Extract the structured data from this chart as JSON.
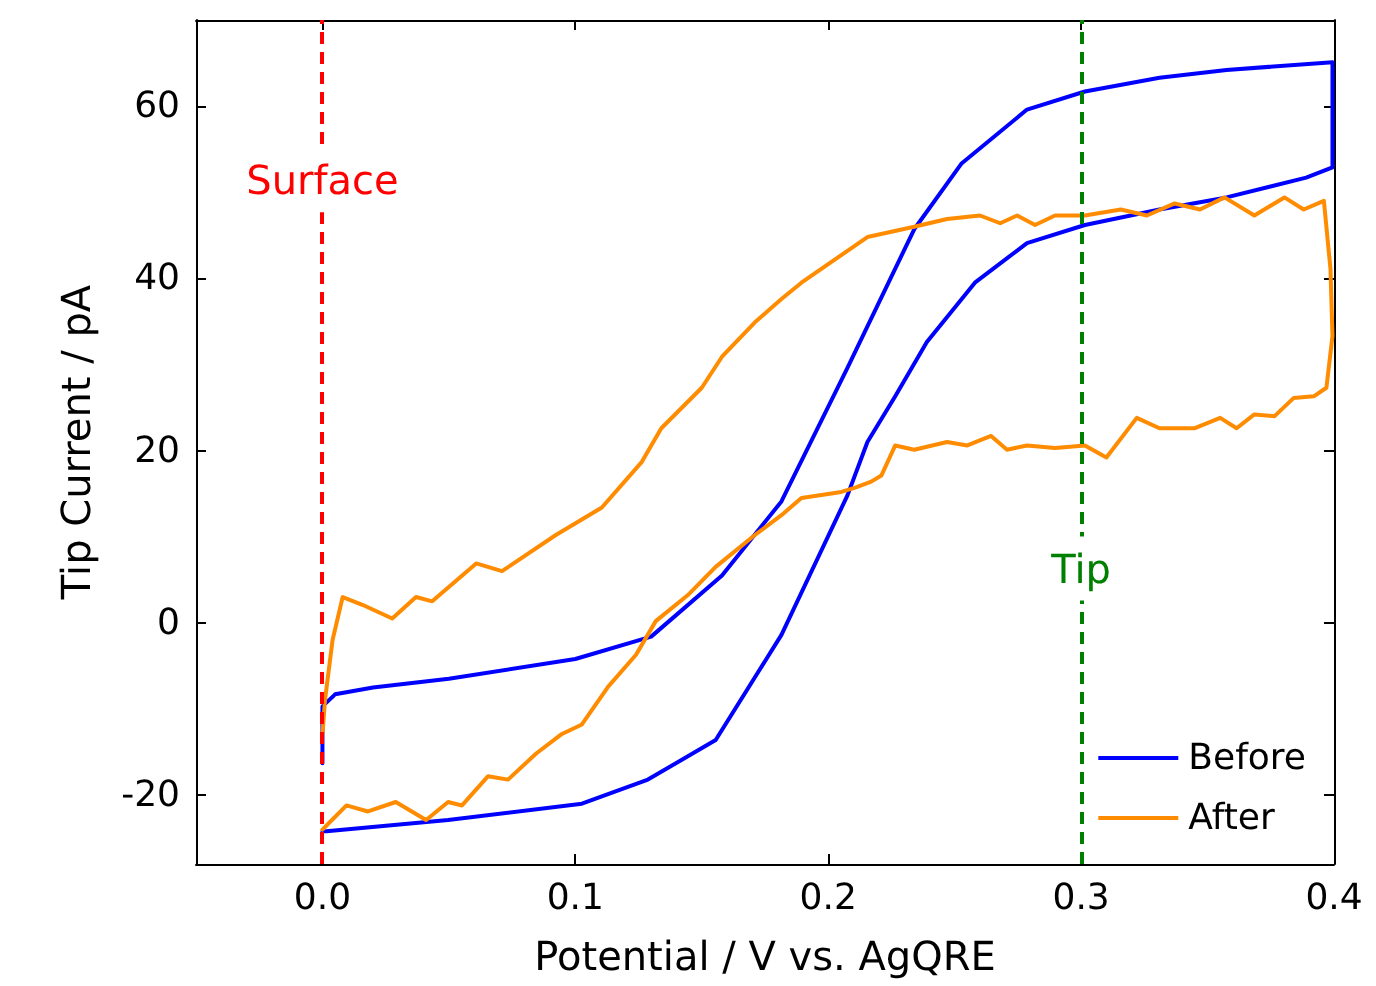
{
  "chart_data": {
    "type": "line",
    "xlabel": "Potential / V vs. AgQRE",
    "ylabel": "Tip Current / pA",
    "xlim": [
      -0.05,
      0.4
    ],
    "ylim": [
      -28,
      70
    ],
    "xticks": [
      {
        "value": 0.0,
        "label": "0.0"
      },
      {
        "value": 0.1,
        "label": "0.1"
      },
      {
        "value": 0.2,
        "label": "0.2"
      },
      {
        "value": 0.3,
        "label": "0.3"
      },
      {
        "value": 0.4,
        "label": "0.4"
      }
    ],
    "yticks": [
      -20,
      0,
      20,
      40,
      60
    ],
    "grid": false,
    "legend": "bottom right",
    "marker": "none",
    "line_style": "solid",
    "ref_lines": [
      {
        "axis": "x",
        "value": 0.0,
        "label": "Surface",
        "color": "#ff0000",
        "line_style": "dashed"
      },
      {
        "axis": "x",
        "value": 0.3,
        "label": "Tip",
        "color": "#008000",
        "line_style": "dashed"
      }
    ],
    "series": [
      {
        "name": "Before",
        "color": "#0000ff",
        "x": [
          0.0,
          0.0,
          0.005,
          0.02,
          0.05,
          0.1,
          0.13,
          0.158,
          0.1815,
          0.2076,
          0.234,
          0.2526,
          0.2786,
          0.3015,
          0.331,
          0.3575,
          0.3994,
          0.3994,
          0.389,
          0.3575,
          0.331,
          0.3015,
          0.2786,
          0.258,
          0.239,
          0.2265,
          0.2155,
          0.2076,
          0.1815,
          0.1555,
          0.1287,
          0.1026,
          0.0497,
          0.0016,
          0.0
        ],
        "values": [
          -16.3,
          -9.7,
          -8.3,
          -7.5,
          -6.5,
          -4.2,
          -1.6,
          5.5,
          14.1,
          29.6,
          45.7,
          53.3,
          59.6,
          61.7,
          63.3,
          64.2,
          65.1,
          52.9,
          51.7,
          49.4,
          48.0,
          46.2,
          44.1,
          39.5,
          32.6,
          26.3,
          21.0,
          14.8,
          -1.4,
          -13.6,
          -18.2,
          -21.0,
          -22.9,
          -24.2,
          -24.2
        ]
      },
      {
        "name": "After",
        "color": "#ff8c00",
        "x": [
          0.0,
          0.001,
          0.004,
          0.008,
          0.0158,
          0.0276,
          0.037,
          0.0434,
          0.0608,
          0.071,
          0.0923,
          0.1105,
          0.1263,
          0.134,
          0.15,
          0.158,
          0.171,
          0.1815,
          0.1894,
          0.2155,
          0.234,
          0.247,
          0.26,
          0.268,
          0.2747,
          0.2818,
          0.2897,
          0.3015,
          0.3157,
          0.326,
          0.337,
          0.347,
          0.3567,
          0.3685,
          0.3804,
          0.388,
          0.396,
          0.3986,
          0.3994,
          0.397,
          0.392,
          0.384,
          0.3765,
          0.3685,
          0.3615,
          0.355,
          0.345,
          0.331,
          0.322,
          0.31,
          0.3015,
          0.2897,
          0.2786,
          0.2707,
          0.2644,
          0.255,
          0.247,
          0.234,
          0.2265,
          0.221,
          0.217,
          0.2107,
          0.2052,
          0.1894,
          0.1815,
          0.171,
          0.1555,
          0.1444,
          0.1318,
          0.124,
          0.113,
          0.1026,
          0.0947,
          0.0844,
          0.0734,
          0.0655,
          0.0552,
          0.0497,
          0.041,
          0.029,
          0.018,
          0.0095,
          0.0024,
          0.0
        ],
        "values": [
          -13,
          -9,
          -2,
          3.0,
          2.1,
          0.5,
          3.0,
          2.5,
          6.9,
          6.0,
          10.2,
          13.4,
          18.7,
          22.6,
          27.3,
          30.9,
          34.9,
          37.6,
          39.5,
          44.8,
          46.0,
          46.9,
          47.3,
          46.4,
          47.3,
          46.2,
          47.3,
          47.3,
          48.0,
          47.3,
          48.7,
          48.0,
          49.4,
          47.3,
          49.4,
          48.0,
          49.0,
          41.1,
          33.3,
          27.3,
          26.3,
          26.1,
          24.0,
          24.2,
          22.6,
          23.8,
          22.6,
          22.6,
          23.8,
          19.2,
          20.6,
          20.3,
          20.6,
          20.1,
          21.7,
          20.6,
          21.0,
          20.1,
          20.6,
          17.1,
          16.4,
          15.7,
          15.2,
          14.5,
          12.5,
          10.2,
          6.5,
          3.2,
          0.2,
          -3.7,
          -7.4,
          -11.8,
          -12.9,
          -15.2,
          -18.2,
          -17.8,
          -21.2,
          -20.8,
          -22.9,
          -20.8,
          -21.9,
          -21.2,
          -23.3,
          -24.0
        ]
      }
    ]
  }
}
